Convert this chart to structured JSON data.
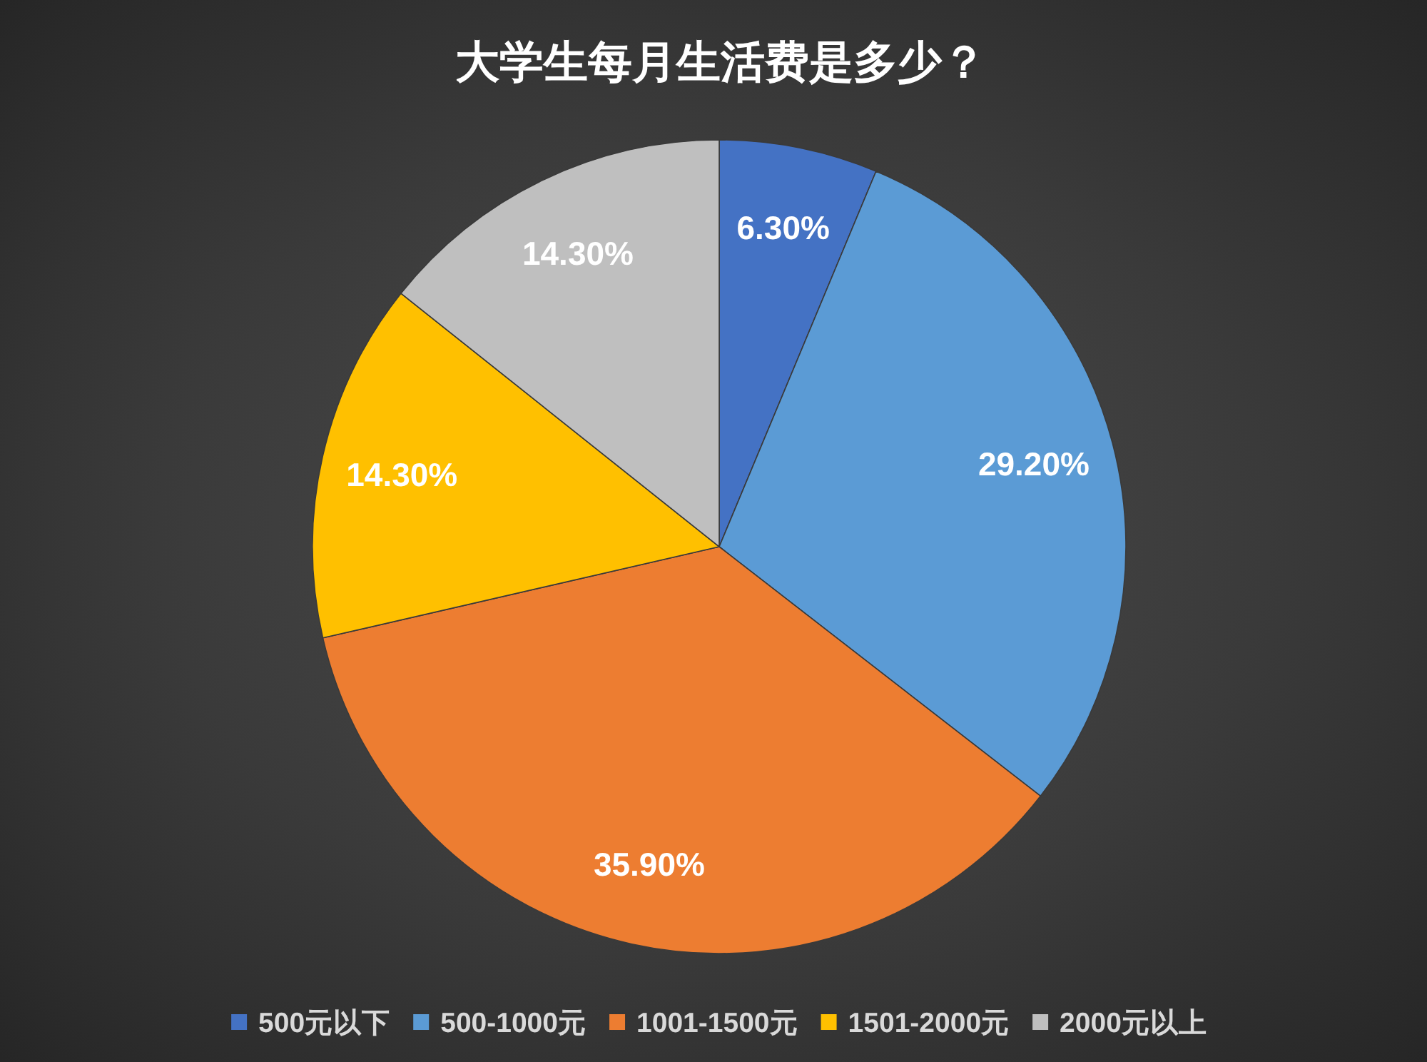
{
  "chart_data": {
    "type": "pie",
    "title": "大学生每月生活费是多少？",
    "categories": [
      "500元以下",
      "500-1000元",
      "1001-1500元",
      "1501-2000元",
      "2000元以上"
    ],
    "values": [
      6.3,
      29.2,
      35.9,
      14.3,
      14.3
    ],
    "colors": [
      "#4472c4",
      "#5b9bd5",
      "#ed7d31",
      "#ffc000",
      "#bfbfbf"
    ],
    "value_labels": [
      "6.30%",
      "29.20%",
      "35.90%",
      "14.30%",
      "14.30%"
    ],
    "legend": "bottom"
  }
}
